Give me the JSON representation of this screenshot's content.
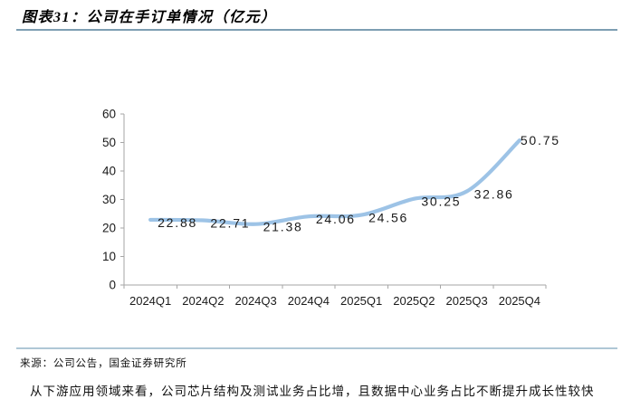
{
  "header": {
    "title": "图表31：公司在手订单情况（亿元）"
  },
  "chart_data": {
    "type": "line",
    "title": "图表31：公司在手订单情况（亿元）",
    "categories": [
      "2024Q1",
      "2024Q2",
      "2024Q3",
      "2024Q4",
      "2025Q1",
      "2025Q2",
      "2025Q3",
      "2025Q4"
    ],
    "values": [
      22.88,
      22.71,
      21.38,
      24.06,
      24.56,
      30.25,
      32.86,
      50.75
    ],
    "data_labels": [
      "22.88",
      "22.71",
      "21.38",
      "24.06",
      "24.56",
      "30.25",
      "32.86",
      "50.75"
    ],
    "xlabel": "",
    "ylabel": "",
    "ylim": [
      0,
      60
    ],
    "yticks": [
      0,
      10,
      20,
      30,
      40,
      50,
      60
    ],
    "grid": false,
    "legend_position": "none",
    "smooth": true,
    "data_label_position": "right",
    "line_color": "#9DC3E6",
    "axis_color": "#A6A6A6",
    "label_color": "#1A1A1A"
  },
  "footer": {
    "source": "来源：公司公告，国金证券研究所",
    "clipped_paragraph_partial": "从下游应用领域来看，公司芯片结构及测试业务占比增，且数据中心业务占比不断提升成长性较快"
  },
  "colors": {
    "rule_top": "#7D9EB2",
    "rule_bottom": "#AFC7D6",
    "line": "#9DC3E6",
    "axis": "#A6A6A6",
    "text": "#1A1A1A"
  }
}
